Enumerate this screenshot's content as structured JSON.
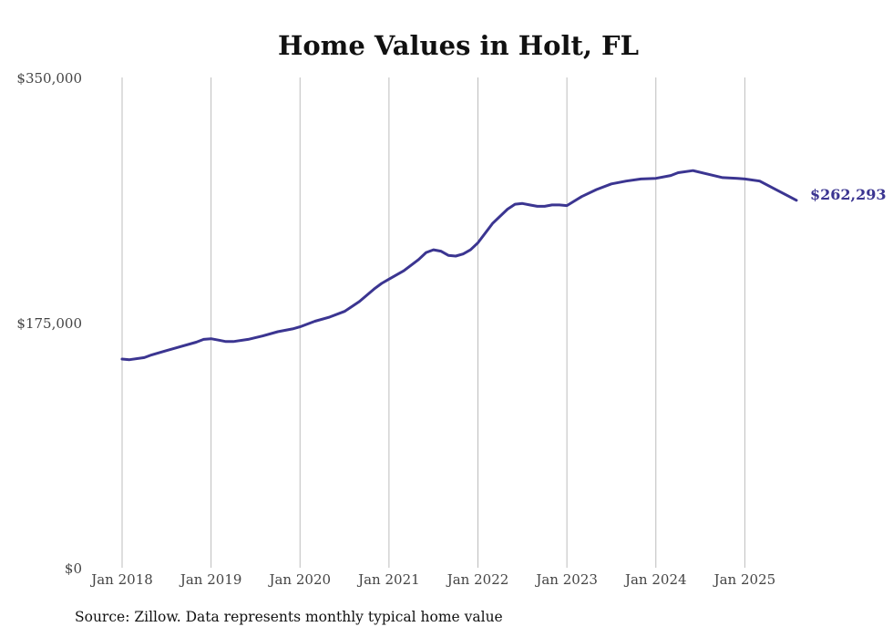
{
  "chart_data": {
    "type": "line",
    "title": "Home Values in Holt, FL",
    "xlabel": "",
    "ylabel": "",
    "ylim": [
      0,
      350000
    ],
    "y_ticks": [
      {
        "value": 0,
        "label": "$0"
      },
      {
        "value": 175000,
        "label": "$175,000"
      },
      {
        "value": 350000,
        "label": "$350,000"
      }
    ],
    "x_range": [
      2018.0,
      2025.58
    ],
    "x_ticks": [
      {
        "value": 2018,
        "label": "Jan 2018"
      },
      {
        "value": 2019,
        "label": "Jan 2019"
      },
      {
        "value": 2020,
        "label": "Jan 2020"
      },
      {
        "value": 2021,
        "label": "Jan 2021"
      },
      {
        "value": 2022,
        "label": "Jan 2022"
      },
      {
        "value": 2023,
        "label": "Jan 2023"
      },
      {
        "value": 2024,
        "label": "Jan 2024"
      },
      {
        "value": 2025,
        "label": "Jan 2025"
      }
    ],
    "grid": "vertical",
    "series": [
      {
        "name": "Typical home value",
        "color": "#3b3591",
        "end_label": "$262,293",
        "x": [
          2018.0,
          2018.083,
          2018.25,
          2018.333,
          2018.5,
          2018.667,
          2018.833,
          2018.917,
          2019.0,
          2019.083,
          2019.167,
          2019.25,
          2019.417,
          2019.583,
          2019.75,
          2019.917,
          2020.0,
          2020.167,
          2020.333,
          2020.5,
          2020.667,
          2020.833,
          2020.917,
          2021.0,
          2021.167,
          2021.333,
          2021.417,
          2021.5,
          2021.583,
          2021.667,
          2021.75,
          2021.833,
          2021.917,
          2022.0,
          2022.167,
          2022.333,
          2022.417,
          2022.5,
          2022.583,
          2022.667,
          2022.75,
          2022.833,
          2022.917,
          2023.0,
          2023.167,
          2023.333,
          2023.5,
          2023.667,
          2023.833,
          2024.0,
          2024.167,
          2024.25,
          2024.417,
          2024.583,
          2024.75,
          2024.917,
          2025.0,
          2025.167,
          2025.333,
          2025.5,
          2025.58
        ],
        "values": [
          149000,
          148500,
          150000,
          152000,
          155000,
          158000,
          161000,
          163000,
          163500,
          162500,
          161500,
          161500,
          163000,
          165500,
          168500,
          170500,
          172000,
          176000,
          179000,
          183000,
          190000,
          199000,
          203000,
          206000,
          212000,
          220000,
          225000,
          227000,
          226000,
          223000,
          222500,
          224000,
          227000,
          232000,
          246000,
          256000,
          259500,
          260000,
          259000,
          258000,
          258000,
          259000,
          259000,
          258500,
          265000,
          270000,
          274000,
          276000,
          277500,
          278000,
          280000,
          282000,
          283500,
          281000,
          278500,
          278000,
          277500,
          276000,
          270500,
          265000,
          262293
        ]
      }
    ]
  },
  "footer": {
    "source": "Source: Zillow. Data represents monthly typical home value"
  }
}
